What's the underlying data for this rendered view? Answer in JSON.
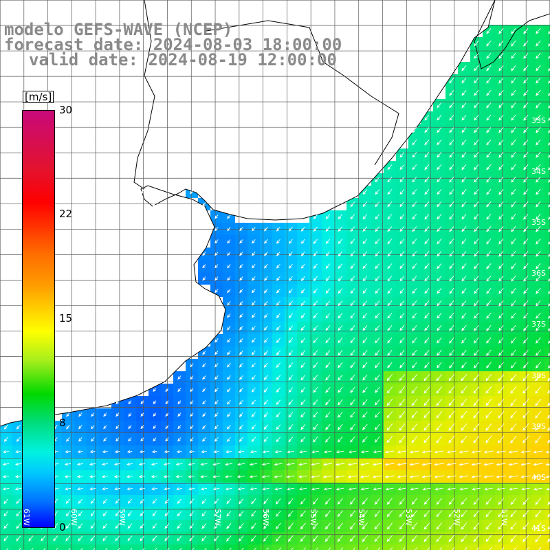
{
  "title": {
    "model": "modelo GEFS-WAVE (NCEP)",
    "forecast": "forecast date: 2024-08-03 18:00:00",
    "valid": "valid date: 2024-08-19 12:00:00"
  },
  "colorbar": {
    "unit": "[m/s]",
    "ticks": [
      "30",
      "22",
      "15",
      "8",
      "0"
    ],
    "tick_values": [
      30,
      22,
      15,
      8,
      0
    ],
    "range": [
      0,
      30
    ]
  },
  "map": {
    "lon_range": [
      -61.5,
      -50.0
    ],
    "lat_range": [
      -41.3,
      -30.5
    ],
    "grid": true,
    "lat_labels": [
      "33S",
      "34S",
      "35S",
      "36S",
      "37S",
      "38S",
      "39S",
      "40S",
      "41S"
    ],
    "lat_label_values": [
      -33,
      -34,
      -35,
      -36,
      -37,
      -38,
      -39,
      -40,
      -41
    ],
    "lon_labels": [
      "61W",
      "60W",
      "59W",
      "57W",
      "56W",
      "55W",
      "54W",
      "53W",
      "52W",
      "51W"
    ],
    "lon_label_values": [
      -61,
      -60,
      -59,
      -57,
      -56,
      -55,
      -54,
      -53,
      -52,
      -51
    ],
    "land_color": "#ffffff",
    "arrow_color": "#ffffff",
    "wind_direction": "from north-east",
    "colors": {
      "weak": "#1f3bff",
      "moderate": "#00c8ff",
      "strong": "#00dd44",
      "very_strong": "#f0f000"
    }
  }
}
